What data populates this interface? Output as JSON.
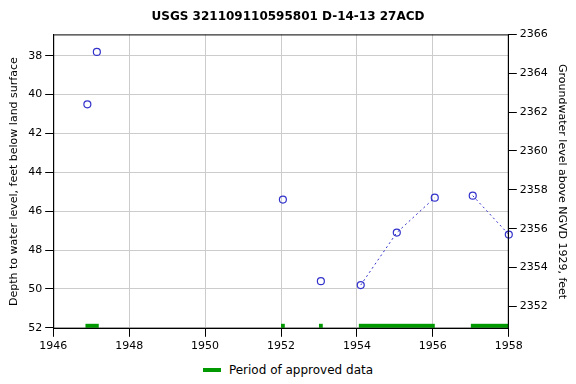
{
  "chart_data": {
    "type": "scatter",
    "title": "USGS 321109110595801 D-14-13 27ACD",
    "y_label": "Depth to water level, feet below land surface",
    "y2_label": "Groundwater level above NGVD 1929, feet",
    "xlim": [
      1946,
      1958
    ],
    "xticks": [
      1946,
      1948,
      1950,
      1952,
      1954,
      1956,
      1958
    ],
    "ylim": [
      52.05,
      36.9
    ],
    "yticks": [
      38,
      40,
      42,
      44,
      46,
      48,
      50,
      52
    ],
    "y2lim": [
      2350.85,
      2366
    ],
    "y2ticks": [
      2352,
      2354,
      2356,
      2358,
      2360,
      2362,
      2364,
      2366
    ],
    "grid": true,
    "legend": "bottom",
    "series": [
      {
        "x": [
          1946.9,
          1947.15,
          1952.05,
          1953.05
        ],
        "values": [
          40.5,
          37.8,
          45.4,
          49.6
        ],
        "color": "#3333cc",
        "marker": "circle",
        "line_style": "none"
      },
      {
        "x": [
          1954.1,
          1955.05,
          1956.05
        ],
        "values": [
          49.8,
          47.1,
          45.3
        ],
        "color": "#3333cc",
        "marker": "circle",
        "line_style": "dotted"
      },
      {
        "x": [
          1957.05,
          1958.0
        ],
        "values": [
          45.2,
          47.2
        ],
        "color": "#3333cc",
        "marker": "circle",
        "line_style": "dotted"
      }
    ],
    "approved_periods": {
      "name": "Period of approved data",
      "color": "#009900",
      "ranges": [
        [
          1946.85,
          1947.2
        ],
        [
          1952.0,
          1952.1
        ],
        [
          1953.0,
          1953.1
        ],
        [
          1954.05,
          1956.05
        ],
        [
          1957.0,
          1958.0
        ]
      ]
    }
  }
}
